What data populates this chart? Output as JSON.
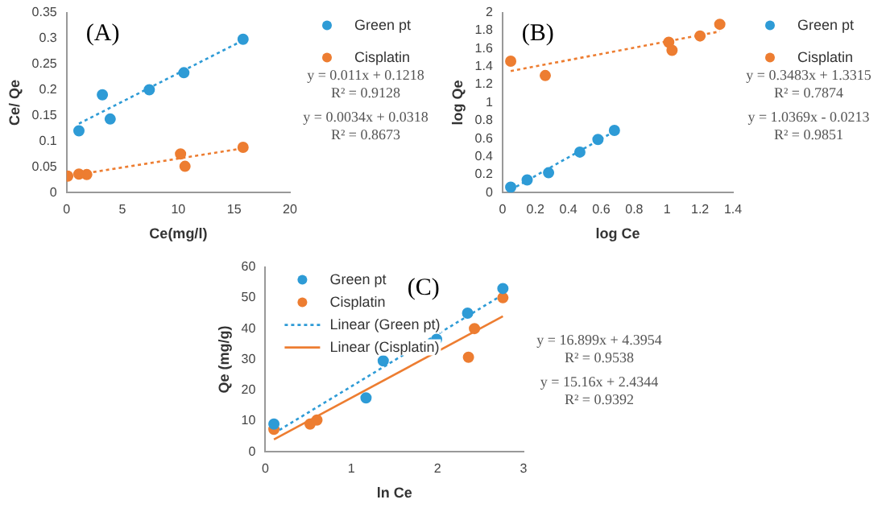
{
  "chart_data": [
    {
      "type": "scatter",
      "title": "(A)",
      "xlabel": "Ce(mg/l)",
      "ylabel": "Ce/ Qe",
      "xlim": [
        0,
        20
      ],
      "xticks": [
        0,
        5,
        10,
        15,
        20
      ],
      "ylim": [
        0,
        0.35
      ],
      "yticks": [
        0,
        0.05,
        0.1,
        0.15,
        0.2,
        0.25,
        0.3,
        0.35
      ],
      "grid": false,
      "legend": "right",
      "marker": "circle",
      "series": [
        {
          "name": "Green pt",
          "color": "#2e9bd6",
          "x": [
            1.1,
            3.2,
            3.9,
            7.4,
            10.5,
            15.8
          ],
          "values": [
            0.12,
            0.19,
            0.143,
            0.2,
            0.233,
            0.298
          ]
        },
        {
          "name": "Cisplatin",
          "color": "#ed7d31",
          "x": [
            0.1,
            1.1,
            1.8,
            10.2,
            10.6,
            15.8
          ],
          "values": [
            0.032,
            0.036,
            0.035,
            0.075,
            0.051,
            0.088
          ]
        },
        {
          "type": "line",
          "color": "#2e9bd6",
          "line_style": "dotted",
          "marker": "none",
          "x": [
            1.1,
            15.8
          ],
          "values": [
            0.134,
            0.296
          ]
        },
        {
          "type": "line",
          "color": "#ed7d31",
          "line_style": "dotted",
          "marker": "none",
          "x": [
            0.1,
            15.8
          ],
          "values": [
            0.032,
            0.086
          ]
        }
      ],
      "annotations": [
        "y = 0.011x + 0.1218",
        "R² = 0.9128",
        "y = 0.0034x + 0.0318",
        "R² = 0.8673"
      ]
    },
    {
      "type": "scatter",
      "title": "(B)",
      "xlabel": "log Ce",
      "ylabel": "log Qe",
      "xlim": [
        0,
        1.4
      ],
      "xticks": [
        0,
        0.2,
        0.4,
        0.6,
        0.8,
        1,
        1.2,
        1.4
      ],
      "ylim": [
        0,
        2
      ],
      "yticks": [
        0,
        0.2,
        0.4,
        0.6,
        0.8,
        1,
        1.2,
        1.4,
        1.6,
        1.8,
        2
      ],
      "grid": false,
      "legend": "right",
      "marker": "circle",
      "series": [
        {
          "name": "Green pt",
          "color": "#2e9bd6",
          "x": [
            0.05,
            0.15,
            0.28,
            0.47,
            0.58,
            0.68
          ],
          "values": [
            0.06,
            0.14,
            0.22,
            0.45,
            0.59,
            0.69
          ]
        },
        {
          "name": "Cisplatin",
          "color": "#ed7d31",
          "x": [
            0.05,
            0.26,
            1.01,
            1.03,
            1.2,
            1.32
          ],
          "values": [
            1.46,
            1.3,
            1.67,
            1.58,
            1.74,
            1.87
          ]
        },
        {
          "type": "line",
          "color": "#2e9bd6",
          "line_style": "dotted",
          "marker": "none",
          "x": [
            0.05,
            0.68
          ],
          "values": [
            0.03,
            0.68
          ]
        },
        {
          "type": "line",
          "color": "#ed7d31",
          "line_style": "dotted",
          "marker": "none",
          "x": [
            0.05,
            1.32
          ],
          "values": [
            1.35,
            1.79
          ]
        }
      ],
      "annotations": [
        "y = 0.3483x + 1.3315",
        "R² = 0.7874",
        "y = 1.0369x - 0.0213",
        "R² = 0.9851"
      ]
    },
    {
      "type": "scatter",
      "title": "(C)",
      "xlabel": "ln Ce",
      "ylabel": "Qe (mg/g)",
      "xlim": [
        0,
        3
      ],
      "xticks": [
        0,
        1,
        2,
        3
      ],
      "ylim": [
        0,
        60
      ],
      "yticks": [
        0,
        10,
        20,
        30,
        40,
        50,
        60
      ],
      "grid": false,
      "legend": "top left",
      "marker": "circle",
      "series": [
        {
          "name": "Green pt",
          "color": "#2e9bd6",
          "x": [
            0.1,
            1.17,
            1.37,
            1.99,
            2.35,
            2.76
          ],
          "values": [
            9,
            17.5,
            29.5,
            36.5,
            45,
            53
          ]
        },
        {
          "name": "Cisplatin",
          "color": "#ed7d31",
          "x": [
            0.1,
            0.52,
            0.6,
            2.36,
            2.43,
            2.76
          ],
          "values": [
            7.3,
            9,
            10.3,
            30.7,
            40,
            50
          ]
        },
        {
          "name": "Linear (Green pt)",
          "type": "line",
          "color": "#2e9bd6",
          "line_style": "dotted",
          "marker": "none",
          "x": [
            0.1,
            2.76
          ],
          "values": [
            6,
            51
          ]
        },
        {
          "name": "Linear (Cisplatin)",
          "type": "line",
          "color": "#ed7d31",
          "line_style": "solid",
          "marker": "none",
          "x": [
            0.1,
            2.76
          ],
          "values": [
            4,
            44
          ]
        }
      ],
      "annotations": [
        "y = 16.899x + 4.3954",
        "R² = 0.9538",
        "y = 15.16x + 2.4344",
        "R² = 0.9392"
      ]
    }
  ]
}
